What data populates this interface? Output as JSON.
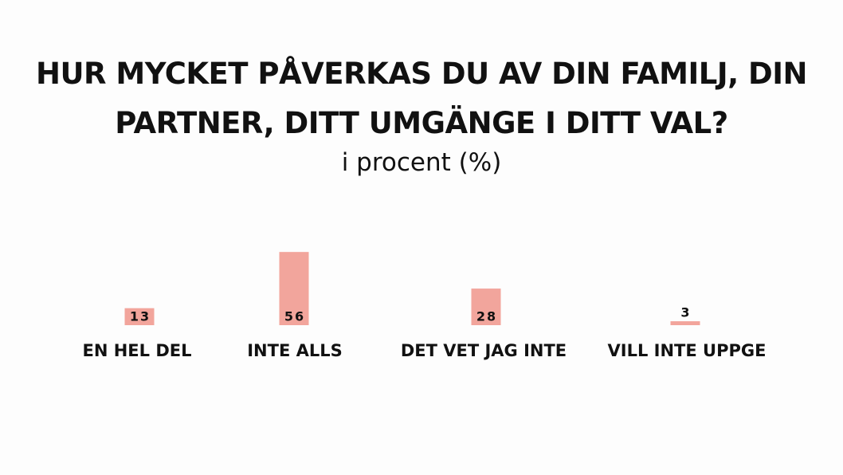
{
  "chart_data": {
    "type": "bar",
    "title": "HUR MYCKET PÅVERKAS DU AV DIN FAMILJ, DIN PARTNER, DITT UMGÄNGE I DITT VAL?",
    "subtitle": "i procent (%)",
    "categories": [
      "EN HEL DEL",
      "INTE ALLS",
      "DET VET JAG INTE",
      "VILL INTE UPPGE"
    ],
    "values": [
      13,
      56,
      28,
      3
    ],
    "color": "#f2a59c"
  }
}
